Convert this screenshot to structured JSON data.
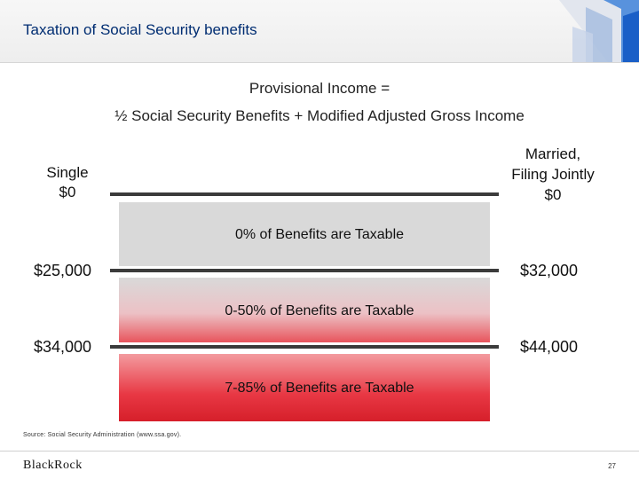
{
  "header": {
    "title": "Taxation of Social Security benefits"
  },
  "formula": {
    "line1": "Provisional Income =",
    "line2": "½ Social Security Benefits + Modified Adjusted Gross Income"
  },
  "columns": {
    "left_label_line1": "Single",
    "left_label_line2": "$0",
    "right_label_line1": "Married,",
    "right_label_line2": "Filing Jointly",
    "right_label_line3": "$0"
  },
  "tiers": [
    {
      "text": "0% of Benefits are Taxable"
    },
    {
      "text": "0-50% of Benefits are Taxable"
    },
    {
      "text": "7-85% of Benefits are Taxable"
    }
  ],
  "thresholds": [
    {
      "single": "$25,000",
      "married": "$32,000"
    },
    {
      "single": "$34,000",
      "married": "$44,000"
    }
  ],
  "colors": {
    "title": "#002d72",
    "tier0": "#d9d9d9",
    "tier2": "#d61f2a"
  },
  "footer": {
    "source": "Source: Social Security Administration (www.ssa.gov).",
    "logo": "BlackRock",
    "page_number": "27"
  }
}
